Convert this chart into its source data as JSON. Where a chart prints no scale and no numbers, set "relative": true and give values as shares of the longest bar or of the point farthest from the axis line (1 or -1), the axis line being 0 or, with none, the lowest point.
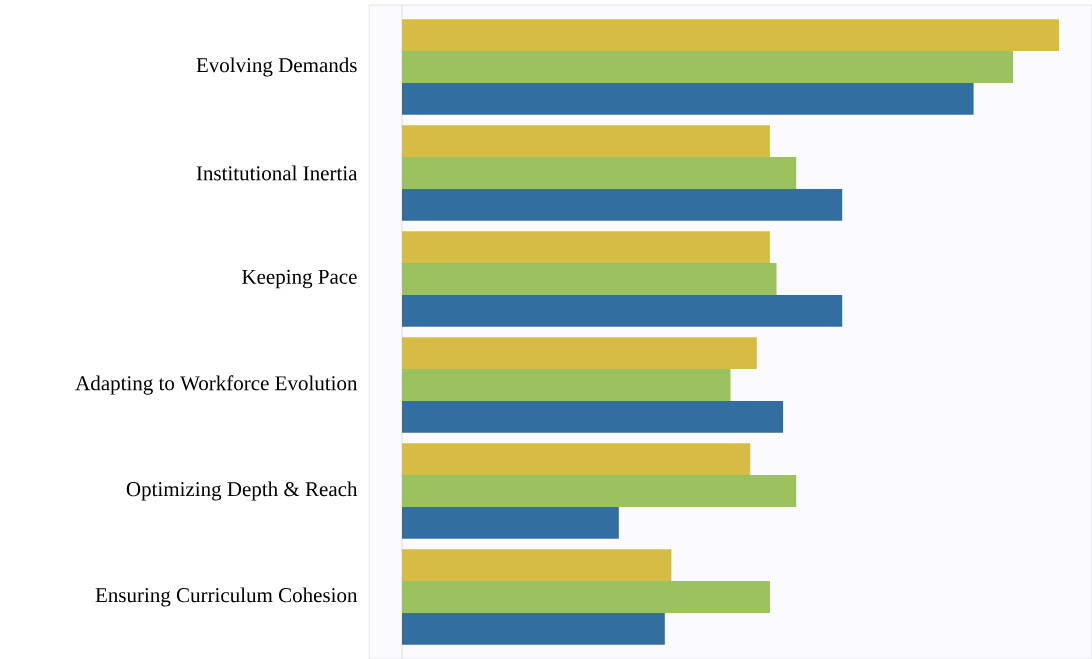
{
  "chart_data": {
    "type": "bar",
    "orientation": "horizontal",
    "relative": true,
    "categories": [
      "Evolving Demands",
      "Institutional Inertia",
      "Keeping Pace",
      "Adapting to Workforce Evolution",
      "Optimizing Depth & Reach",
      "Ensuring Curriculum Cohesion"
    ],
    "series": [
      {
        "color": "#d6bc45",
        "values": [
          1,
          0.56,
          0.56,
          0.54,
          0.53,
          0.41
        ]
      },
      {
        "color": "#9bc25e",
        "values": [
          0.93,
          0.6,
          0.57,
          0.5,
          0.6,
          0.56
        ]
      },
      {
        "color": "#336ea0",
        "values": [
          0.87,
          0.67,
          0.67,
          0.58,
          0.33,
          0.4
        ]
      }
    ]
  }
}
